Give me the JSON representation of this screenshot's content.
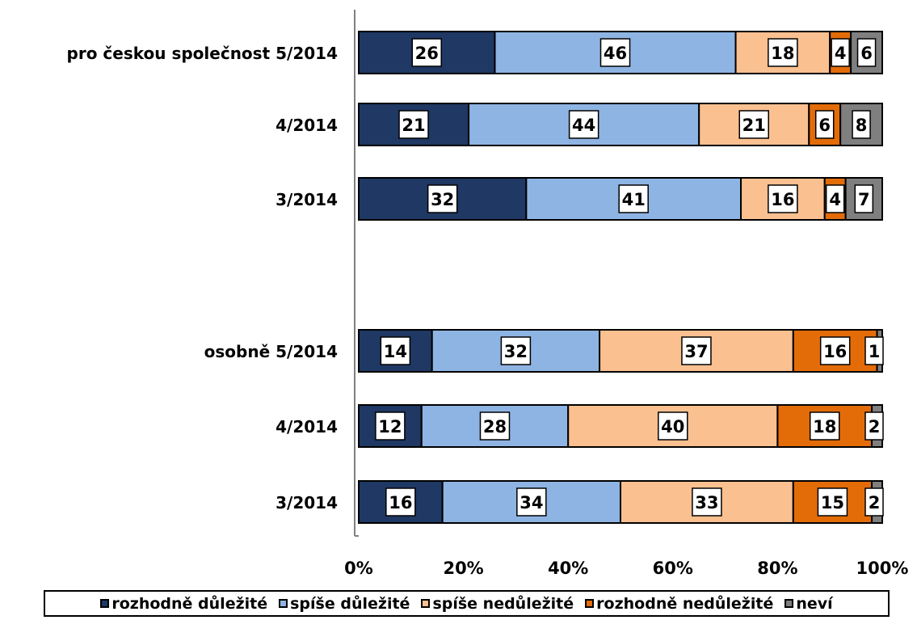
{
  "chart_data": {
    "type": "bar",
    "orientation": "horizontal",
    "stacked": "percent",
    "categories": [
      "pro českou společnost 5/2014",
      "4/2014",
      "3/2014",
      "osobně 5/2014",
      "4/2014",
      "3/2014"
    ],
    "series": [
      {
        "name": "rozhodně důležité",
        "color": "#1f3864",
        "values": [
          26,
          21,
          32,
          14,
          12,
          16
        ]
      },
      {
        "name": "spíše důležité",
        "color": "#8eb4e3",
        "values": [
          46,
          44,
          41,
          32,
          28,
          34
        ]
      },
      {
        "name": "spíše nedůležité",
        "color": "#fac090",
        "values": [
          18,
          21,
          16,
          37,
          40,
          33
        ]
      },
      {
        "name": "rozhodně nedůležité",
        "color": "#e36c09",
        "values": [
          4,
          6,
          4,
          16,
          18,
          15
        ]
      },
      {
        "name": "neví",
        "color": "#7f7f7f",
        "values": [
          6,
          8,
          7,
          1,
          2,
          2
        ]
      }
    ],
    "xlim": [
      0,
      100
    ],
    "xticks": [
      "0%",
      "20%",
      "40%",
      "60%",
      "80%",
      "100%"
    ],
    "grid": false,
    "legend_position": "bottom"
  }
}
